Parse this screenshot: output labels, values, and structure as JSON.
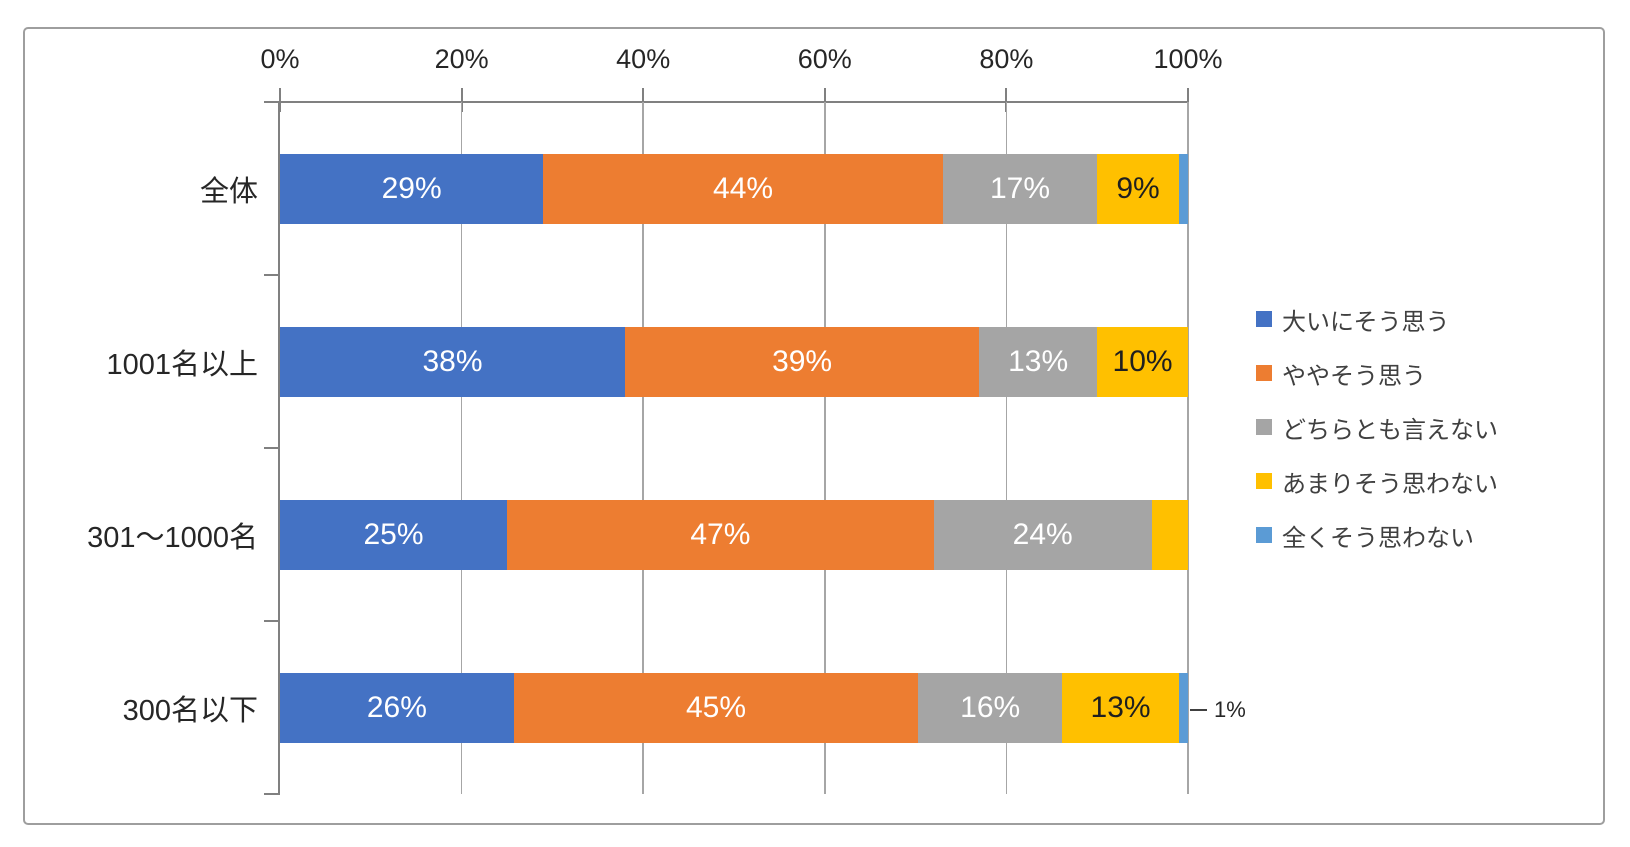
{
  "frame": {
    "border_color": "#9e9e9e",
    "background": "#ffffff"
  },
  "chart_data": {
    "type": "bar",
    "orientation": "horizontal",
    "stacked": true,
    "percent_stacked": true,
    "title": "",
    "xlabel": "",
    "ylabel": "",
    "xlim": [
      0,
      100
    ],
    "x_ticks": [
      "0%",
      "20%",
      "40%",
      "60%",
      "80%",
      "100%"
    ],
    "grid": "vertical",
    "legend_position": "right",
    "categories": [
      "全体",
      "1001名以上",
      "301～1000名",
      "300名以下"
    ],
    "series": [
      {
        "name": "大いにそう思う",
        "color": "#4472C4",
        "label_color": "#ffffff",
        "values": [
          29,
          38,
          25,
          26
        ]
      },
      {
        "name": "ややそう思う",
        "color": "#ED7D31",
        "label_color": "#ffffff",
        "values": [
          44,
          39,
          47,
          45
        ]
      },
      {
        "name": "どちらとも言えない",
        "color": "#A5A5A5",
        "label_color": "#ffffff",
        "values": [
          17,
          13,
          24,
          16
        ]
      },
      {
        "name": "あまりそう思わない",
        "color": "#FFC000",
        "label_color": "#1f1f1f",
        "values": [
          9,
          10,
          4,
          13
        ]
      },
      {
        "name": "全くそう思わない",
        "color": "#5B9BD5",
        "label_color": "#ffffff",
        "values": [
          1,
          0,
          0,
          1
        ]
      }
    ],
    "data_labels": [
      [
        "29%",
        "44%",
        "17%",
        "9%",
        ""
      ],
      [
        "38%",
        "39%",
        "13%",
        "10%",
        ""
      ],
      [
        "25%",
        "47%",
        "24%",
        "",
        ""
      ],
      [
        "26%",
        "45%",
        "16%",
        "13%",
        ""
      ]
    ],
    "callout": {
      "category_index": 3,
      "series_index": 4,
      "text": "1%"
    },
    "axis_color": "#808080",
    "gridline_color": "#a6a6a6"
  }
}
